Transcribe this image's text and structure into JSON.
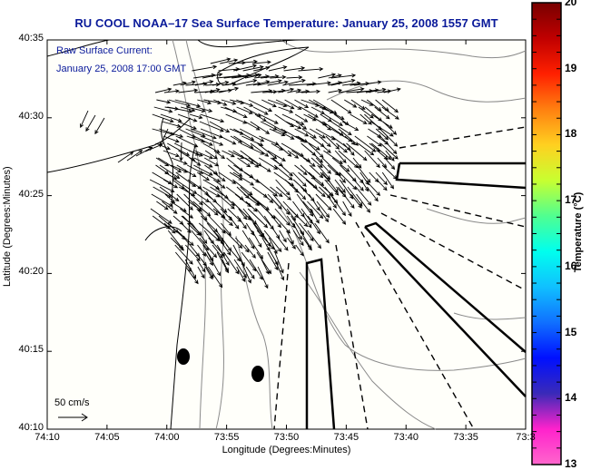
{
  "title": "RU COOL  NOAA–17  Sea Surface Temperature:  January 25, 2008 1557 GMT",
  "annotation": {
    "line1": "Raw Surface Current:",
    "line2": "January 25, 2008 17:00 GMT"
  },
  "scale_label": "50 cm/s",
  "x_axis": {
    "label": "Longitude (Degrees:Minutes)",
    "ticks": [
      "74:10",
      "74:05",
      "74:00",
      "73:55",
      "73:50",
      "73:45",
      "73:40",
      "73:35",
      "73:3"
    ]
  },
  "y_axis": {
    "label": "Latitude (Degrees:Minutes)",
    "ticks": [
      "40:35",
      "40:30",
      "40:25",
      "40:20",
      "40:15",
      "40:10"
    ]
  },
  "colorbar": {
    "label": "Temperature (°C)",
    "ticks": [
      "20",
      "19",
      "18",
      "17",
      "16",
      "15",
      "14",
      "13"
    ],
    "range": [
      13,
      20
    ],
    "stops": [
      "#ff66cc",
      "#ff22cc",
      "#3a2ab8",
      "#0010ff",
      "#1070ff",
      "#10c0ff",
      "#00ffee",
      "#50ff90",
      "#c8ff30",
      "#ffd020",
      "#ff8010",
      "#ff2000",
      "#c00000",
      "#780000"
    ]
  },
  "chart_data": {
    "type": "map",
    "title": "RU COOL  NOAA–17  Sea Surface Temperature:  January 25, 2008 1557 GMT",
    "xlabel": "Longitude (Degrees:Minutes)",
    "ylabel": "Latitude (Degrees:Minutes)",
    "xlim": [
      "74:10W",
      "73:30W"
    ],
    "ylim": [
      "40:10N",
      "40:35N"
    ],
    "colorbar_range_c": [
      13,
      20
    ],
    "vector_field": "Raw surface current, January 25, 2008 17:00 GMT; flow predominantly eastward in the northern Bight apex (~40:25–40:32N), turning south-eastward offshore",
    "reference_vector": "50 cm/s"
  }
}
